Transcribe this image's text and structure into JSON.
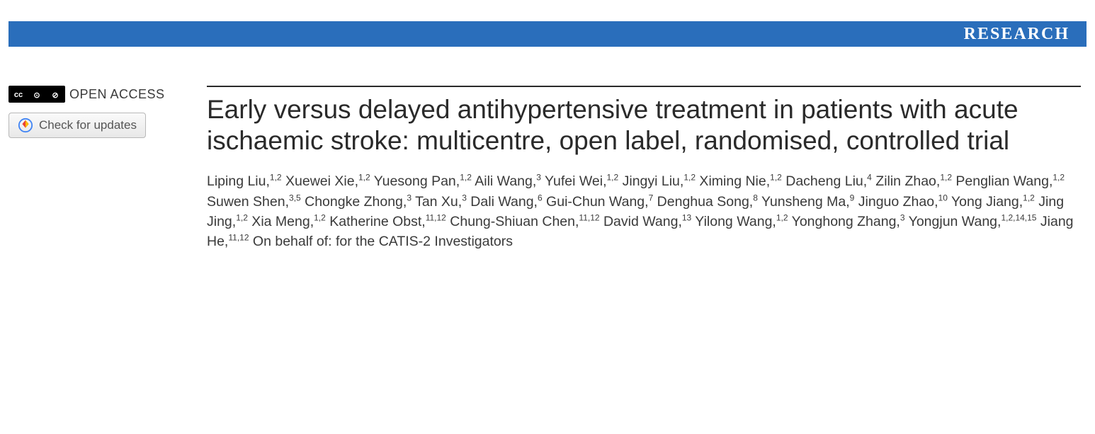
{
  "banner": {
    "label": "RESEARCH",
    "background_color": "#2a6ebb",
    "text_color": "#ffffff"
  },
  "sidebar": {
    "open_access_label": "OPEN ACCESS",
    "cc_cells": [
      "cc",
      "⊙",
      "⊘"
    ],
    "updates_button_label": "Check for updates"
  },
  "article": {
    "title": "Early versus delayed antihypertensive treatment in patients with acute ischaemic stroke: multicentre, open label, randomised, controlled trial",
    "authors": [
      {
        "name": "Liping Liu",
        "affil": "1,2"
      },
      {
        "name": "Xuewei Xie",
        "affil": "1,2"
      },
      {
        "name": "Yuesong Pan",
        "affil": "1,2"
      },
      {
        "name": "Aili Wang",
        "affil": "3"
      },
      {
        "name": "Yufei Wei",
        "affil": "1,2"
      },
      {
        "name": "Jingyi Liu",
        "affil": "1,2"
      },
      {
        "name": "Ximing Nie",
        "affil": "1,2"
      },
      {
        "name": "Dacheng Liu",
        "affil": "4"
      },
      {
        "name": "Zilin Zhao",
        "affil": "1,2"
      },
      {
        "name": "Penglian Wang",
        "affil": "1,2"
      },
      {
        "name": "Suwen Shen",
        "affil": "3,5"
      },
      {
        "name": "Chongke Zhong",
        "affil": "3"
      },
      {
        "name": "Tan Xu",
        "affil": "3"
      },
      {
        "name": "Dali Wang",
        "affil": "6"
      },
      {
        "name": "Gui-Chun Wang",
        "affil": "7"
      },
      {
        "name": "Denghua Song",
        "affil": "8"
      },
      {
        "name": "Yunsheng Ma",
        "affil": "9"
      },
      {
        "name": "Jinguo Zhao",
        "affil": "10"
      },
      {
        "name": "Yong Jiang",
        "affil": "1,2"
      },
      {
        "name": "Jing Jing",
        "affil": "1,2"
      },
      {
        "name": "Xia Meng",
        "affil": "1,2"
      },
      {
        "name": "Katherine Obst",
        "affil": "11,12"
      },
      {
        "name": "Chung-Shiuan Chen",
        "affil": "11,12"
      },
      {
        "name": "David Wang",
        "affil": "13"
      },
      {
        "name": "Yilong Wang",
        "affil": "1,2"
      },
      {
        "name": "Yonghong Zhang",
        "affil": "3"
      },
      {
        "name": "Yongjun Wang",
        "affil": "1,2,14,15"
      },
      {
        "name": "Jiang He",
        "affil": "11,12"
      }
    ],
    "on_behalf_text": "On behalf of: for the CATIS-2 Investigators"
  },
  "colors": {
    "banner_bg": "#2a6ebb",
    "text": "#2a2a2a",
    "rule": "#2a2a2a",
    "updates_icon_ring": "#4285f4",
    "updates_icon_fill": "#ea4335"
  }
}
